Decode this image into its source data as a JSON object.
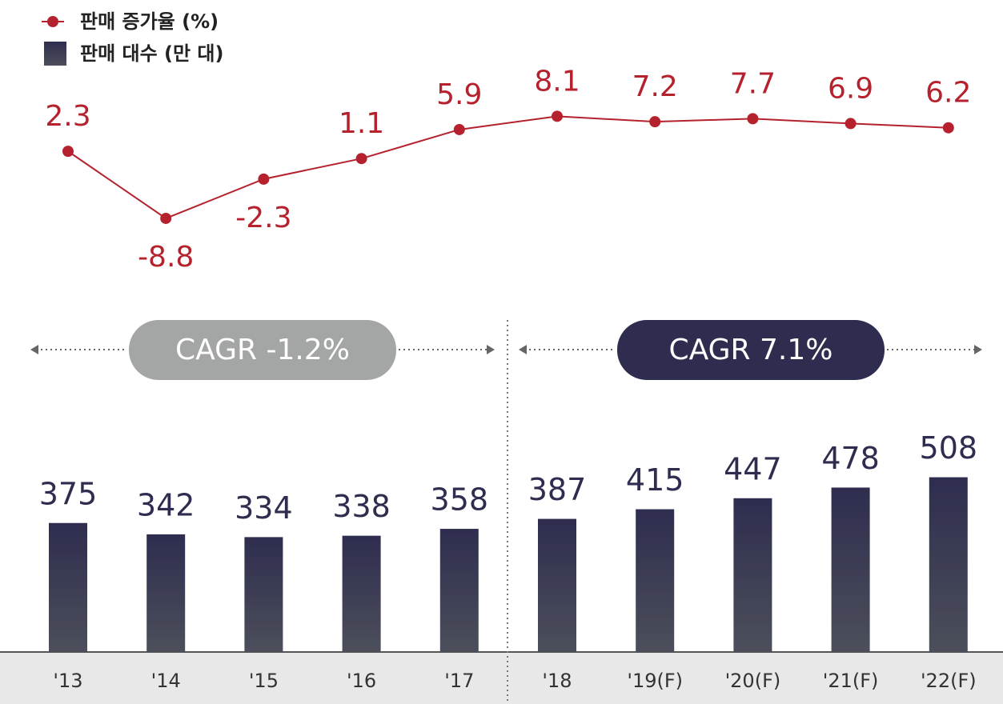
{
  "chart_data": {
    "type": "combo",
    "categories": [
      "'13",
      "'14",
      "'15",
      "'16",
      "'17",
      "'18",
      "'19(F)",
      "'20(F)",
      "'21(F)",
      "'22(F)"
    ],
    "series": [
      {
        "name": "판매 대수 (만 대)",
        "type": "bar",
        "color": "#2e2d4f",
        "values": [
          375,
          342,
          334,
          338,
          358,
          387,
          415,
          447,
          478,
          508
        ]
      },
      {
        "name": "판매 증가율 (%)",
        "type": "line",
        "axis": "y2",
        "color": "#b5222d",
        "values": [
          2.3,
          -8.8,
          -2.3,
          1.1,
          5.9,
          8.1,
          7.2,
          7.7,
          6.9,
          6.2
        ]
      }
    ],
    "ylim": [
      0,
      1000
    ],
    "y2lim": [
      -10,
      10
    ],
    "annotations": [
      "CAGR -1.2%",
      "CAGR 7.1%"
    ]
  }
}
